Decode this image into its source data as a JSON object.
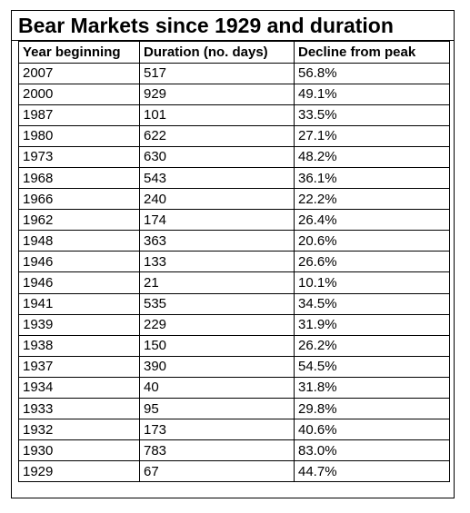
{
  "title": "Bear Markets since 1929 and duration",
  "columns": [
    "Year beginning",
    "Duration (no. days)",
    "Decline from peak"
  ],
  "rows": [
    [
      "2007",
      "517",
      "56.8%"
    ],
    [
      "2000",
      "929",
      "49.1%"
    ],
    [
      "1987",
      "101",
      "33.5%"
    ],
    [
      "1980",
      "622",
      "27.1%"
    ],
    [
      "1973",
      "630",
      "48.2%"
    ],
    [
      "1968",
      "543",
      "36.1%"
    ],
    [
      "1966",
      "240",
      "22.2%"
    ],
    [
      "1962",
      "174",
      "26.4%"
    ],
    [
      "1948",
      "363",
      "20.6%"
    ],
    [
      "1946",
      "133",
      "26.6%"
    ],
    [
      "1946",
      "21",
      "10.1%"
    ],
    [
      "1941",
      "535",
      "34.5%"
    ],
    [
      "1939",
      "229",
      "31.9%"
    ],
    [
      "1938",
      "150",
      "26.2%"
    ],
    [
      "1937",
      "390",
      "54.5%"
    ],
    [
      "1934",
      "40",
      "31.8%"
    ],
    [
      "1933",
      "95",
      "29.8%"
    ],
    [
      "1932",
      "173",
      "40.6%"
    ],
    [
      "1930",
      "783",
      "83.0%"
    ],
    [
      "1929",
      "67",
      "44.7%"
    ]
  ]
}
